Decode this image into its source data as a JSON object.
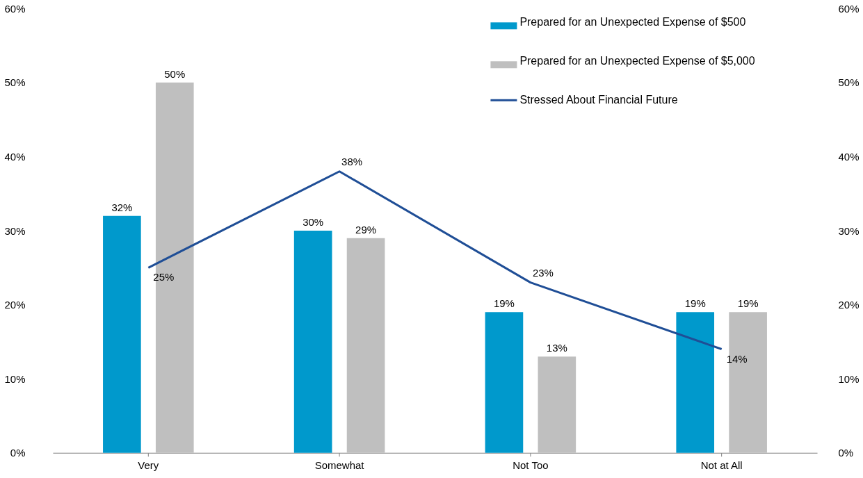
{
  "chart_data": {
    "type": "bar",
    "categories": [
      "Very",
      "Somewhat",
      "Not Too",
      "Not at All"
    ],
    "series": [
      {
        "name": "Prepared for an Unexpected Expense of $500",
        "color": "#0099cc",
        "values": [
          32,
          30,
          19,
          19
        ],
        "value_labels": [
          "32%",
          "30%",
          "19%",
          "19%"
        ]
      },
      {
        "name": "Prepared for an Unexpected Expense of $5,000",
        "color": "#bfbfbf",
        "values": [
          50,
          29,
          13,
          19
        ],
        "value_labels": [
          "50%",
          "29%",
          "13%",
          "19%"
        ]
      },
      {
        "name": "Stressed About Financial Future",
        "type": "line",
        "axis": "y2",
        "color": "#1f4e96",
        "values": [
          25,
          38,
          23,
          14
        ],
        "value_labels": [
          "25%",
          "38%",
          "23%",
          "14%"
        ]
      }
    ],
    "ylim": [
      0,
      60
    ],
    "yticks": [
      {
        "value": 0,
        "label": "0%"
      },
      {
        "value": 10,
        "label": "10%"
      },
      {
        "value": 20,
        "label": "20%"
      },
      {
        "value": 30,
        "label": "30%"
      },
      {
        "value": 40,
        "label": "40%"
      },
      {
        "value": 50,
        "label": "50%"
      },
      {
        "value": 60,
        "label": "60%"
      }
    ],
    "y2lim": [
      0,
      60
    ],
    "y2ticks": [
      {
        "value": 0,
        "label": "0%"
      },
      {
        "value": 10,
        "label": "10%"
      },
      {
        "value": 20,
        "label": "20%"
      },
      {
        "value": 30,
        "label": "30%"
      },
      {
        "value": 40,
        "label": "40%"
      },
      {
        "value": 50,
        "label": "50%"
      },
      {
        "value": 60,
        "label": "60%"
      }
    ],
    "legend": "top right",
    "grid": false,
    "marker": "none",
    "line_style": "solid"
  }
}
